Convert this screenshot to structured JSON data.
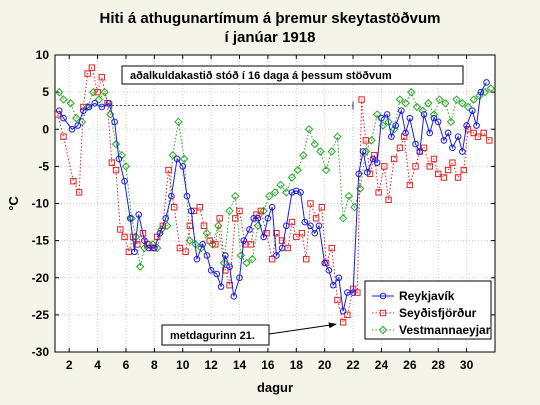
{
  "chart_data": {
    "type": "line",
    "title": [
      "Hiti á athugunartímum á þremur skeytastöðvum",
      "í janúar 1918"
    ],
    "xlabel": "dagur",
    "ylabel": "°C",
    "xlim": [
      1,
      32
    ],
    "ylim": [
      -30,
      10
    ],
    "xticks": [
      2,
      4,
      6,
      8,
      10,
      12,
      14,
      16,
      18,
      20,
      22,
      24,
      26,
      28,
      30
    ],
    "yticks": [
      -30,
      -25,
      -20,
      -15,
      -10,
      -5,
      0,
      5,
      10
    ],
    "legend_position": "bottom-right",
    "annotations": {
      "top_box": "aðalkuldakastið stóð í 16 daga á þessum stöðvum",
      "range_start": 5,
      "range_end": 22,
      "range_y": 3.2,
      "bottom_box": "metdagurinn 21.",
      "arrow_to_x": 21,
      "arrow_to_y": -26
    },
    "series": [
      {
        "name": "Reykjavík",
        "color": "#1a1aee",
        "marker": "circle",
        "line": "solid",
        "x": [
          1.3,
          1.6,
          2.2,
          2.6,
          3,
          3.4,
          3.8,
          4.3,
          4.8,
          5.2,
          5.5,
          5.9,
          6.3,
          6.6,
          6.9,
          7.3,
          7.6,
          8,
          8.4,
          8.8,
          9.2,
          9.6,
          10,
          10.3,
          10.6,
          11,
          11.4,
          11.7,
          12,
          12.4,
          12.7,
          13,
          13.3,
          13.6,
          14,
          14.3,
          14.7,
          15,
          15.3,
          15.7,
          16,
          16.3,
          16.6,
          17,
          17.3,
          17.7,
          18,
          18.3,
          18.6,
          19,
          19.3,
          19.6,
          20,
          20.3,
          20.6,
          21,
          21.3,
          21.6,
          22,
          22.4,
          22.7,
          23,
          23.4,
          23.7,
          24,
          24.4,
          24.7,
          25,
          25.4,
          25.7,
          26,
          26.4,
          26.7,
          27,
          27.4,
          27.7,
          28,
          28.4,
          28.7,
          29,
          29.4,
          29.7,
          30,
          30.4,
          30.7,
          31,
          31.4
        ],
        "y": [
          2.5,
          1.5,
          0,
          0.5,
          2.5,
          3,
          3.5,
          3,
          3.5,
          1,
          -4,
          -7,
          -12,
          -16.5,
          -11.5,
          -15,
          -16,
          -16,
          -14,
          -12,
          -9,
          -4,
          -5,
          -9,
          -11,
          -17.5,
          -15.5,
          -17,
          -19,
          -19.5,
          -21.2,
          -17,
          -18.5,
          -22.5,
          -20,
          -15,
          -13.5,
          -12,
          -12,
          -14.5,
          -12,
          -10.5,
          -17,
          -16,
          -13,
          -8.5,
          -8.3,
          -8.5,
          -12.5,
          -13,
          -14,
          -13,
          -18,
          -19,
          -21,
          -20,
          -24.5,
          -22,
          -22,
          -6,
          -3,
          -5.8,
          -4,
          -4.5,
          1.5,
          2,
          -1,
          0.5,
          2.5,
          -0.5,
          1.5,
          -2,
          -3,
          2,
          -0.5,
          1.5,
          1,
          -1.5,
          -0.5,
          -2.5,
          -1,
          -3,
          0.5,
          2.5,
          0.5,
          5,
          6.3
        ]
      },
      {
        "name": "Seyðisfjörður",
        "color": "#e82020",
        "marker": "square",
        "line": "dotted",
        "x": [
          1.2,
          1.6,
          2.3,
          2.7,
          3,
          3.3,
          3.6,
          4,
          4.3,
          4.7,
          5,
          5.3,
          5.6,
          5.9,
          6.2,
          6.5,
          6.8,
          7.2,
          7.5,
          7.9,
          8.2,
          8.6,
          9,
          9.4,
          9.8,
          10.2,
          10.5,
          10.8,
          11.2,
          11.5,
          11.9,
          12.3,
          12.6,
          13,
          13.3,
          13.7,
          14,
          14.4,
          14.8,
          15.2,
          15.5,
          15.9,
          16.3,
          16.6,
          17,
          17.4,
          17.7,
          18,
          18.4,
          18.7,
          19,
          19.4,
          19.8,
          20.1,
          20.5,
          20.9,
          21.3,
          21.6,
          22,
          22.3,
          22.6,
          22.9,
          23.2,
          23.5,
          23.8,
          24.2,
          24.5,
          24.9,
          25.3,
          25.6,
          26,
          26.4,
          26.7,
          27,
          27.4,
          27.7,
          28,
          28.4,
          28.7,
          29,
          29.4,
          29.8,
          30.1,
          30.5,
          30.8,
          31.2,
          31.6
        ],
        "y": [
          2,
          -1,
          -7,
          -8.5,
          3,
          7.5,
          8.3,
          5,
          7,
          3.5,
          -4.5,
          -5.5,
          -13.5,
          -14.5,
          -16.5,
          -14.5,
          -15.5,
          -14,
          -15.5,
          -16,
          -14.5,
          -13,
          -5.5,
          -10.5,
          -16,
          -16.5,
          -13,
          -11,
          -10.5,
          -13,
          -15,
          -15.5,
          -12,
          -19,
          -21,
          -12,
          -11,
          -15.5,
          -15.5,
          -11.5,
          -11,
          -14,
          -17.5,
          -14,
          -15,
          -16,
          -12.5,
          -14.5,
          -14,
          -17.5,
          -10,
          -12,
          -10.5,
          -18,
          -16,
          -23,
          -26,
          -25,
          -21.5,
          -22,
          4,
          -1.5,
          -6,
          -3.5,
          -8.5,
          -5,
          -9.5,
          -4,
          -2.5,
          -1,
          -7.5,
          -5,
          -3,
          -2.5,
          -5,
          -4,
          -6,
          -6.5,
          -5.5,
          -4.5,
          -6.5,
          -5.5,
          0,
          -0.5,
          -1,
          -0.5,
          -1.5
        ]
      },
      {
        "name": "Vestmannaeyjar",
        "color": "#22aa22",
        "marker": "diamond",
        "line": "dotted",
        "x": [
          1.3,
          1.6,
          2.1,
          2.5,
          2.9,
          3.3,
          3.7,
          4.1,
          4.5,
          4.9,
          5.3,
          5.7,
          6,
          6.4,
          6.7,
          7,
          7.3,
          7.6,
          7.9,
          8.2,
          8.5,
          8.9,
          9.3,
          9.7,
          10.1,
          10.5,
          10.9,
          11.3,
          11.7,
          12.1,
          12.5,
          12.9,
          13.3,
          13.7,
          14.1,
          14.5,
          14.9,
          15.3,
          15.7,
          16.1,
          16.5,
          16.9,
          17.3,
          17.7,
          18.1,
          18.5,
          18.9,
          19.3,
          19.7,
          20.1,
          20.5,
          20.9,
          21.3,
          21.7,
          22.1,
          22.5,
          22.9,
          23.3,
          23.7,
          24.1,
          24.5,
          24.9,
          25.3,
          25.7,
          26.1,
          26.5,
          26.9,
          27.3,
          27.7,
          28.1,
          28.5,
          28.9,
          29.3,
          29.7,
          30.1,
          30.5,
          30.9,
          31.3,
          31.7
        ],
        "y": [
          5,
          4,
          3.5,
          1.5,
          1,
          3,
          5,
          4,
          5,
          2,
          -2,
          -3.5,
          -5,
          -12,
          -14.5,
          -18.5,
          -16,
          -15.5,
          -15.5,
          -16,
          -13.5,
          -13,
          -3.5,
          1,
          -4,
          -15,
          -15.5,
          -16,
          -14,
          -15.5,
          -13,
          -18,
          -11,
          -9,
          -17,
          -18,
          -17.5,
          -13,
          -11,
          -9,
          -8.5,
          -7.5,
          -8.5,
          -6.5,
          -5.5,
          -3.5,
          0,
          -2,
          -3,
          -5.5,
          -3,
          -1,
          -12,
          -9,
          -10.5,
          -8,
          -3,
          -1.5,
          2,
          0.5,
          1,
          0,
          4,
          3.5,
          5,
          3,
          2.5,
          3.5,
          2,
          4,
          3.5,
          1,
          4,
          3.5,
          3,
          4,
          4.5,
          5,
          5.5
        ]
      }
    ]
  }
}
